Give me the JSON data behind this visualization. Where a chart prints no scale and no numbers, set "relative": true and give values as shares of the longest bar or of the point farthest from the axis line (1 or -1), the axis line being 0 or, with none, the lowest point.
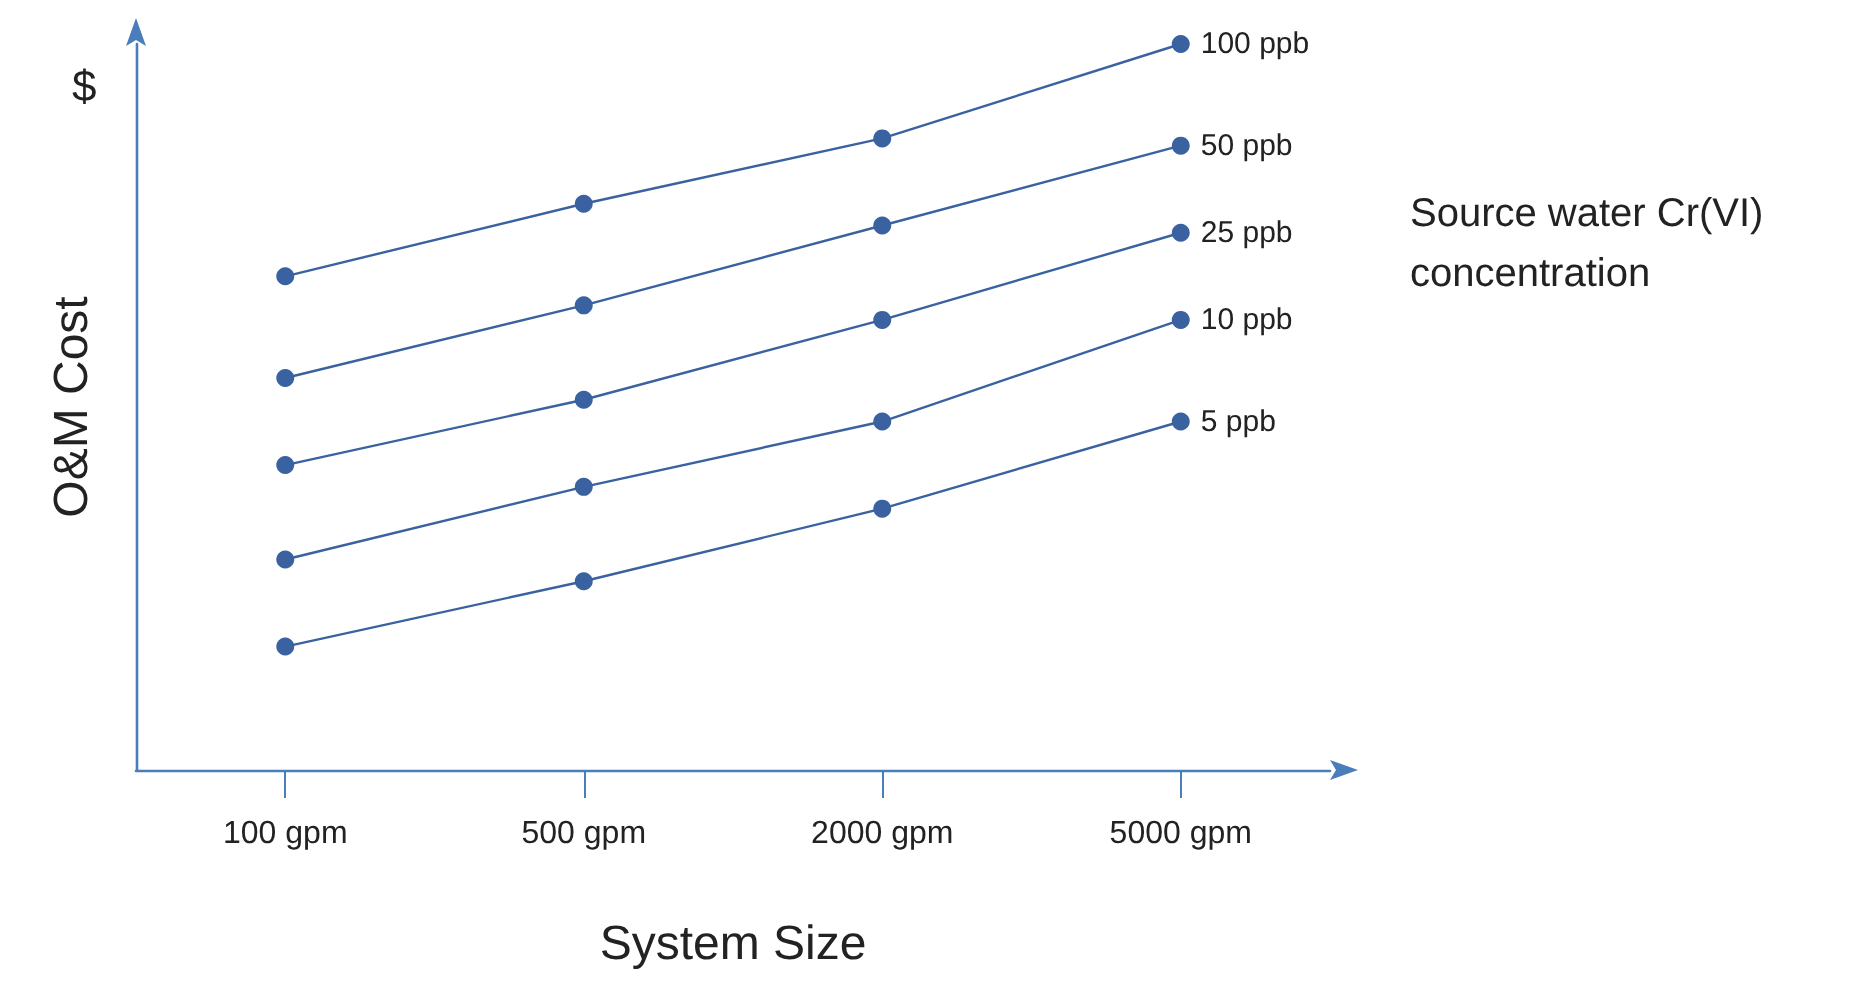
{
  "chart_data": {
    "type": "line",
    "relative": true,
    "xlabel": "System Size",
    "ylabel": "O&M Cost",
    "legend_title": "Source water Cr(VI) concentration",
    "annotations": [
      "$"
    ],
    "categories": [
      "100 gpm",
      "500 gpm",
      "2000 gpm",
      "5000 gpm"
    ],
    "marker": "circle",
    "grid": false,
    "legend": false,
    "series": [
      {
        "name": "100 ppb",
        "color": "#3a62a0",
        "values": [
          0.68,
          0.78,
          0.87,
          1
        ]
      },
      {
        "name": "50 ppb",
        "color": "#3a62a0",
        "values": [
          0.54,
          0.64,
          0.75,
          0.86
        ]
      },
      {
        "name": "25 ppb",
        "color": "#3a62a0",
        "values": [
          0.42,
          0.51,
          0.62,
          0.74
        ]
      },
      {
        "name": "10 ppb",
        "color": "#3a62a0",
        "values": [
          0.29,
          0.39,
          0.48,
          0.62
        ]
      },
      {
        "name": "5 ppb",
        "color": "#3a62a0",
        "values": [
          0.17,
          0.26,
          0.36,
          0.48
        ]
      }
    ]
  }
}
